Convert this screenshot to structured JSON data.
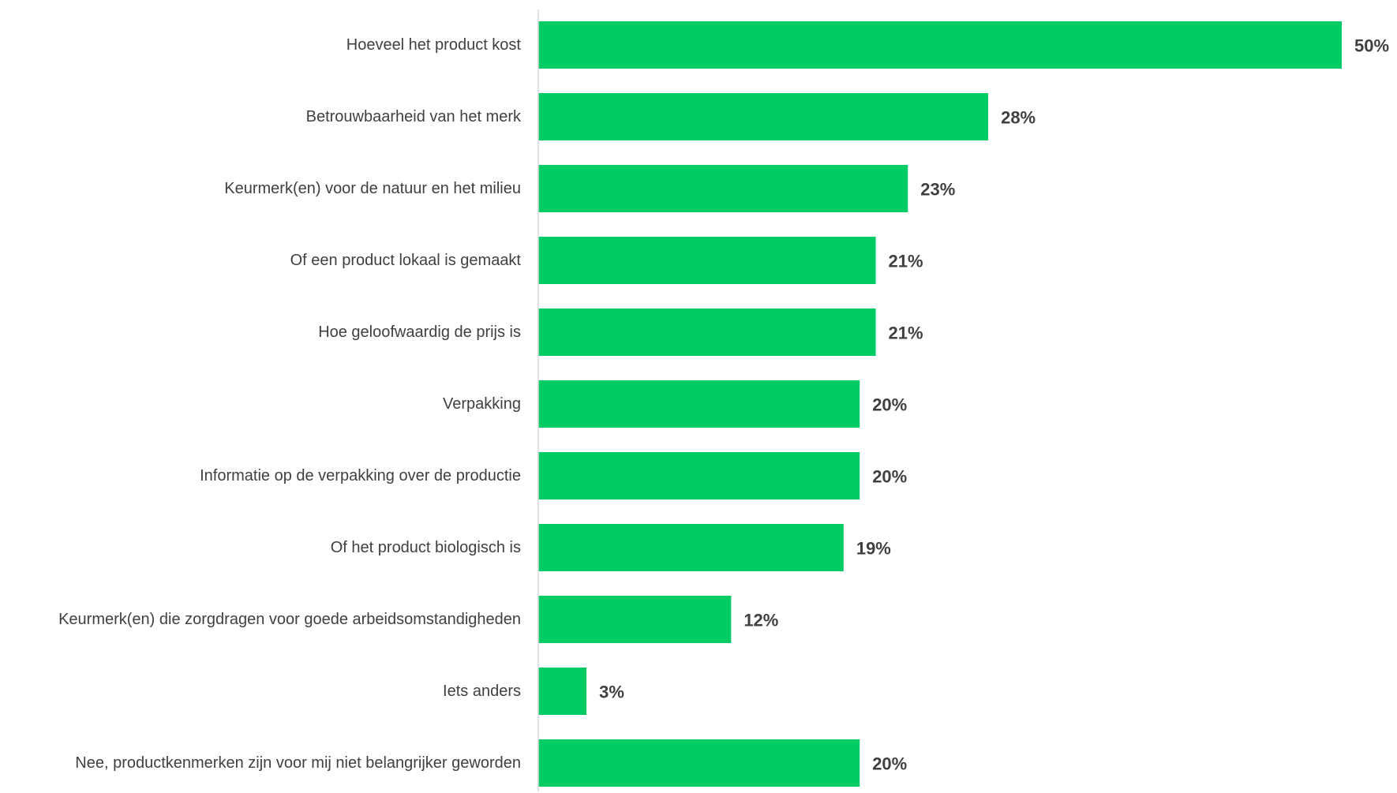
{
  "chart_data": {
    "type": "bar",
    "orientation": "horizontal",
    "categories": [
      "Hoeveel het product kost",
      "Betrouwbaarheid van het merk",
      "Keurmerk(en) voor de natuur en het milieu",
      "Of een product lokaal is gemaakt",
      "Hoe geloofwaardig de prijs is",
      "Verpakking",
      "Informatie op de verpakking over de productie",
      "Of het product biologisch is",
      "Keurmerk(en) die zorgdragen voor goede arbeidsomstandigheden",
      "Iets anders",
      "Nee, productkenmerken zijn voor mij niet belangrijker geworden"
    ],
    "values": [
      50,
      28,
      23,
      21,
      21,
      20,
      20,
      19,
      12,
      3,
      20
    ],
    "value_labels": [
      "50%",
      "28%",
      "23%",
      "21%",
      "21%",
      "20%",
      "20%",
      "19%",
      "12%",
      "3%",
      "20%"
    ],
    "unit": "%",
    "xlim": [
      0,
      50
    ],
    "grid": false,
    "legend": "none",
    "bar_color": "#00cc66",
    "axis_color": "#d9d9d9",
    "text_color": "#404040"
  }
}
